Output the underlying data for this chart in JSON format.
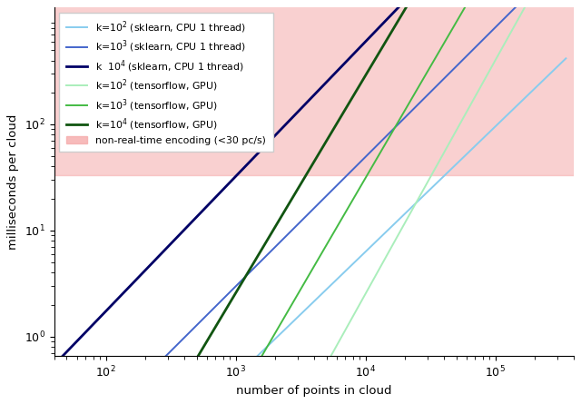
{
  "xlabel": "number of points in cloud",
  "ylabel": "milliseconds per cloud",
  "pink_color": "#f5aaaa",
  "pink_alpha": 0.55,
  "non_realtime_threshold_ms": 33.333,
  "xlim": [
    40,
    400000
  ],
  "ylim_log": [
    -0.18,
    3.1
  ],
  "curves": [
    {
      "label": "k=$10^2$ (sklearn, CPU 1 thread)",
      "color": "#88CCEE",
      "lw": 1.4,
      "type": "sklearn",
      "a": 0.00012,
      "b": 1.18
    },
    {
      "label": "k=$10^3$ (sklearn, CPU 1 thread)",
      "color": "#4466CC",
      "lw": 1.4,
      "type": "sklearn",
      "a": 0.00065,
      "b": 1.22
    },
    {
      "label": "k  $10^4$ (sklearn, CPU 1 thread)",
      "color": "#000066",
      "lw": 2.0,
      "type": "sklearn",
      "a": 0.005,
      "b": 1.27
    },
    {
      "label": "k=$10^2$ (tensorflow, GPU)",
      "color": "#aaeebb",
      "lw": 1.4,
      "type": "tf",
      "flat_val": 0.55,
      "flat_until": 5000,
      "rise_x0": 5000,
      "rise_a": 0.55,
      "rise_b": 2.2
    },
    {
      "label": "k=$10^3$ (tensorflow, GPU)",
      "color": "#44bb44",
      "lw": 1.4,
      "type": "tf",
      "flat_val": 0.58,
      "flat_until": 1500,
      "rise_x0": 1500,
      "rise_a": 0.58,
      "rise_b": 2.1
    },
    {
      "label": "k=$10^4$ (tensorflow, GPU)",
      "color": "#115511",
      "lw": 2.0,
      "type": "tf",
      "flat_val": 0.62,
      "flat_until": 500,
      "rise_x0": 500,
      "rise_a": 0.62,
      "rise_b": 2.05
    }
  ]
}
